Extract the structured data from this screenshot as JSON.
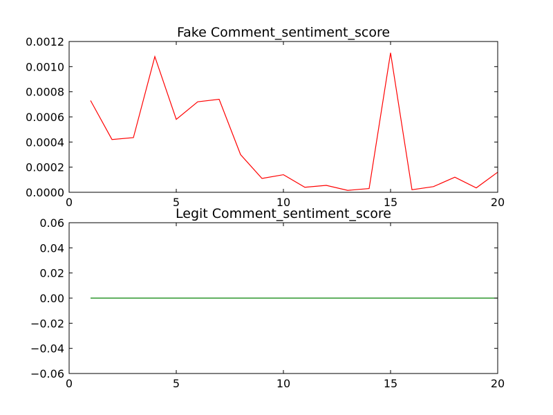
{
  "chart_data": [
    {
      "type": "line",
      "title": "Fake Comment_sentiment_score",
      "xlabel": "",
      "ylabel": "",
      "xlim": [
        0,
        20
      ],
      "ylim": [
        0,
        0.0012
      ],
      "xticks": [
        0,
        5,
        10,
        15,
        20
      ],
      "xtick_labels": [
        "0",
        "5",
        "10",
        "15",
        "20"
      ],
      "yticks": [
        0,
        0.0002,
        0.0004,
        0.0006,
        0.0008,
        0.001,
        0.0012
      ],
      "ytick_labels": [
        "0.0000",
        "0.0002",
        "0.0004",
        "0.0006",
        "0.0008",
        "0.0010",
        "0.0012"
      ],
      "grid": false,
      "series": [
        {
          "color": "#ff0000",
          "x": [
            1,
            2,
            3,
            4,
            5,
            6,
            7,
            8,
            9,
            10,
            11,
            12,
            13,
            14,
            15,
            16,
            17,
            18,
            19,
            20
          ],
          "y": [
            0.00073,
            0.00042,
            0.000435,
            0.00108,
            0.00058,
            0.00072,
            0.00074,
            0.0003,
            0.00011,
            0.00014,
            4e-05,
            5.5e-05,
            1.5e-05,
            3e-05,
            0.00111,
            2e-05,
            4.5e-05,
            0.00012,
            3.5e-05,
            0.00016
          ]
        }
      ]
    },
    {
      "type": "line",
      "title": "Legit Comment_sentiment_score",
      "xlabel": "",
      "ylabel": "",
      "xlim": [
        0,
        20
      ],
      "ylim": [
        -0.06,
        0.06
      ],
      "xticks": [
        0,
        5,
        10,
        15,
        20
      ],
      "xtick_labels": [
        "0",
        "5",
        "10",
        "15",
        "20"
      ],
      "yticks": [
        -0.06,
        -0.04,
        -0.02,
        0,
        0.02,
        0.04,
        0.06
      ],
      "ytick_labels": [
        "−0.06",
        "−0.04",
        "−0.02",
        "0.00",
        "0.02",
        "0.04",
        "0.06"
      ],
      "grid": false,
      "series": [
        {
          "color": "#008000",
          "x": [
            1,
            2,
            3,
            4,
            5,
            6,
            7,
            8,
            9,
            10,
            11,
            12,
            13,
            14,
            15,
            16,
            17,
            18,
            19,
            20
          ],
          "y": [
            0,
            0,
            0,
            0,
            0,
            0,
            0,
            0,
            0,
            0,
            0,
            0,
            0,
            0,
            0,
            0,
            0,
            0,
            0,
            0
          ]
        }
      ]
    }
  ]
}
